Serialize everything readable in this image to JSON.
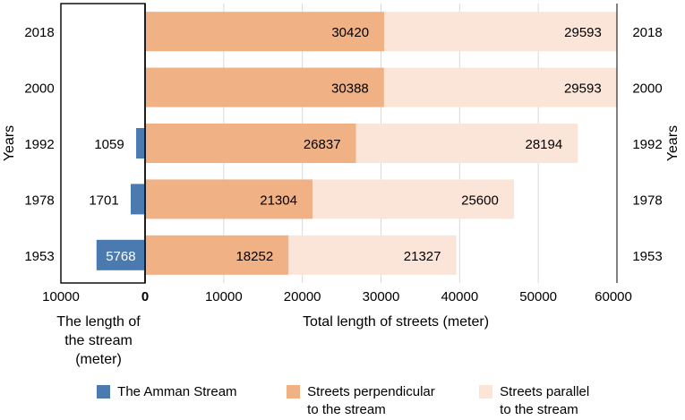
{
  "chart_data": {
    "type": "bar",
    "orientation": "horizontal",
    "categories": [
      "2018",
      "2000",
      "1992",
      "1978",
      "1953"
    ],
    "series": [
      {
        "name": "The Amman Stream",
        "color": "#4a7ab0",
        "values": [
          null,
          null,
          1059,
          1701,
          5768
        ]
      },
      {
        "name": "Streets perpendicular to the stream",
        "color": "#f0b185",
        "values": [
          30420,
          30388,
          26837,
          21304,
          18252
        ]
      },
      {
        "name": "Streets parallel to the stream",
        "color": "#fbe5d9",
        "values": [
          29593,
          29593,
          28194,
          25600,
          21327
        ]
      }
    ],
    "left_panel": {
      "xlabel_lines": [
        "The length of",
        "the stream",
        "(meter)"
      ],
      "xlim": [
        10000,
        0
      ],
      "ticks": [
        "10000",
        "0"
      ]
    },
    "right_panel": {
      "xlabel": "Total length of streets  (meter)",
      "xlim": [
        0,
        60000
      ],
      "ticks": [
        "0",
        "10000",
        "20000",
        "30000",
        "40000",
        "50000",
        "60000"
      ]
    },
    "ylabel": "Years",
    "ylabel_right": "Years",
    "legend": {
      "placement": "bottom",
      "items": [
        {
          "lines": [
            "The Amman Stream"
          ]
        },
        {
          "lines": [
            "Streets perpendicular",
            "to the stream"
          ]
        },
        {
          "lines": [
            "Streets parallel",
            "to the stream"
          ]
        }
      ]
    }
  }
}
